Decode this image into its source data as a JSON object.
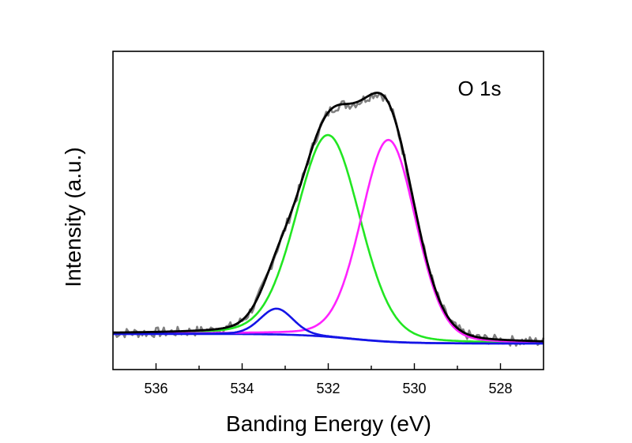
{
  "chart_data": {
    "type": "line",
    "title": "",
    "annotation": "O 1s",
    "xlabel": "Banding Energy (eV)",
    "ylabel": "Intensity (a.u.)",
    "xlim": [
      537,
      527
    ],
    "ylim": [
      0,
      100
    ],
    "x_reversed": true,
    "x_ticks": [
      536,
      534,
      532,
      530,
      528
    ],
    "x_tick_labels": [
      "536",
      "534",
      "532",
      "530",
      "528"
    ],
    "x_minor_ticks": [
      535,
      533,
      531,
      529
    ],
    "y_ticks_shown": false,
    "grid": false,
    "legend": "none",
    "background": {
      "name": "Background",
      "color": "#1414e6",
      "low_be_level": 8.2,
      "high_be_level": 11.2,
      "step_center": 531.5
    },
    "series": [
      {
        "name": "Raw data",
        "color": "#808080",
        "style": "noisy"
      },
      {
        "name": "Fitted envelope",
        "color": "#000000"
      },
      {
        "name": "Component 532.0 eV",
        "color": "#22e622",
        "center": 532.0,
        "height": 63.4,
        "fwhm": 1.74
      },
      {
        "name": "Component 530.6 eV",
        "color": "#ff22ff",
        "center": 530.6,
        "height": 63.4,
        "fwhm": 1.5
      },
      {
        "name": "Component 533.2 eV",
        "color": "#1414e6",
        "center": 533.2,
        "height": 8.1,
        "fwhm": 0.9
      }
    ]
  }
}
